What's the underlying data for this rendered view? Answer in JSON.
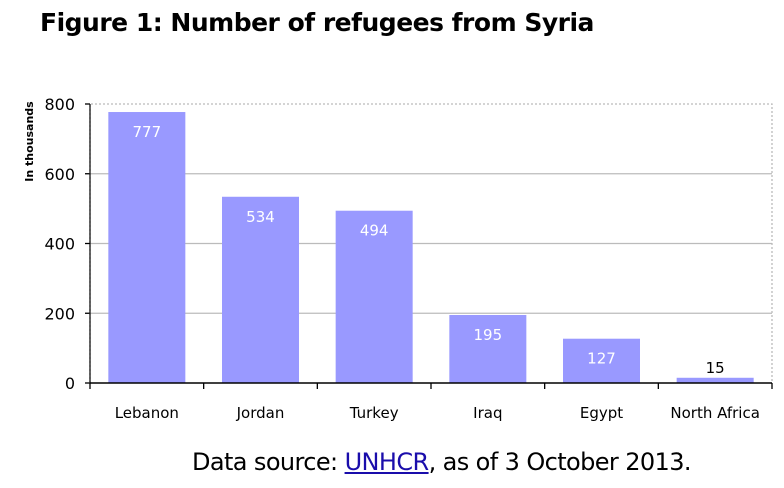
{
  "chart_data": {
    "type": "bar",
    "title": "Figure 1: Number of refugees from Syria",
    "ylabel": "In thousands",
    "xlabel": "",
    "categories": [
      "Lebanon",
      "Jordan",
      "Turkey",
      "Iraq",
      "Egypt",
      "North Africa"
    ],
    "values": [
      777,
      534,
      494,
      195,
      127,
      15
    ],
    "data_labels": [
      "777",
      "534",
      "494",
      "195",
      "127",
      "15"
    ],
    "ylim": [
      0,
      800
    ],
    "yticks": [
      "0",
      "200",
      "400",
      "600",
      "800"
    ],
    "grid": true,
    "bar_color": "#9999ff"
  },
  "source": {
    "prefix": "Data source: ",
    "link": "UNHCR",
    "suffix": ", as of 3 October 2013."
  }
}
